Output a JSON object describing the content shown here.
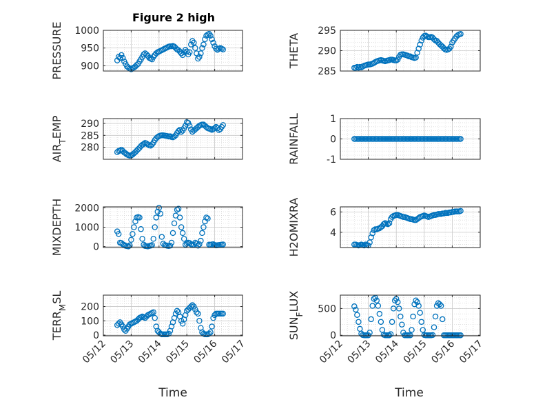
{
  "figure": {
    "title": "Figure 2 high",
    "xlabel": "Time",
    "marker_color": "#0072BD",
    "x_tick_labels": [
      "05/12",
      "05/13",
      "05/14",
      "05/15",
      "05/16",
      "05/17"
    ]
  },
  "chart_data": [
    {
      "type": "scatter",
      "panel": "pressure",
      "ylabel": "PRESSURE",
      "ylabel_sub": "",
      "xlim": [
        12,
        17
      ],
      "ylim": [
        885,
        1000
      ],
      "yticks": [
        900,
        950,
        1000
      ],
      "x": [
        12.5,
        12.55,
        12.6,
        12.65,
        12.7,
        12.75,
        12.8,
        12.85,
        12.9,
        12.95,
        13.0,
        13.05,
        13.1,
        13.15,
        13.2,
        13.25,
        13.3,
        13.35,
        13.4,
        13.45,
        13.5,
        13.55,
        13.6,
        13.65,
        13.7,
        13.75,
        13.8,
        13.85,
        13.9,
        13.95,
        14.0,
        14.05,
        14.1,
        14.15,
        14.2,
        14.25,
        14.3,
        14.35,
        14.4,
        14.45,
        14.5,
        14.55,
        14.6,
        14.65,
        14.7,
        14.75,
        14.8,
        14.85,
        14.9,
        14.95,
        15.0,
        15.05,
        15.1,
        15.15,
        15.2,
        15.25,
        15.3,
        15.35,
        15.4,
        15.45,
        15.5,
        15.55,
        15.6,
        15.65,
        15.7,
        15.75,
        15.8,
        15.85,
        15.9,
        15.95,
        16.0,
        16.05,
        16.1,
        16.15,
        16.2,
        16.25,
        16.3
      ],
      "y": [
        915,
        925,
        922,
        930,
        922,
        912,
        905,
        898,
        895,
        892,
        890,
        893,
        895,
        898,
        902,
        905,
        912,
        918,
        925,
        932,
        935,
        932,
        928,
        922,
        920,
        918,
        925,
        930,
        935,
        938,
        940,
        942,
        944,
        946,
        948,
        950,
        952,
        954,
        955,
        955,
        956,
        954,
        950,
        946,
        944,
        940,
        935,
        930,
        938,
        945,
        940,
        932,
        938,
        960,
        970,
        965,
        950,
        935,
        920,
        925,
        935,
        950,
        960,
        975,
        985,
        988,
        990,
        985,
        975,
        965,
        955,
        948,
        945,
        948,
        950,
        948,
        946
      ]
    },
    {
      "type": "scatter",
      "panel": "theta",
      "ylabel": "THETA",
      "ylabel_sub": "",
      "xlim": [
        12,
        17
      ],
      "ylim": [
        285,
        295
      ],
      "yticks": [
        285,
        290,
        295
      ],
      "x": [
        12.5,
        12.55,
        12.6,
        12.65,
        12.7,
        12.75,
        12.8,
        12.85,
        12.9,
        12.95,
        13.0,
        13.05,
        13.1,
        13.15,
        13.2,
        13.25,
        13.3,
        13.35,
        13.4,
        13.45,
        13.5,
        13.55,
        13.6,
        13.65,
        13.7,
        13.75,
        13.8,
        13.85,
        13.9,
        13.95,
        14.0,
        14.05,
        14.1,
        14.15,
        14.2,
        14.25,
        14.3,
        14.35,
        14.4,
        14.45,
        14.5,
        14.55,
        14.6,
        14.65,
        14.7,
        14.75,
        14.8,
        14.85,
        14.9,
        14.95,
        15.0,
        15.05,
        15.1,
        15.15,
        15.2,
        15.25,
        15.3,
        15.35,
        15.4,
        15.45,
        15.5,
        15.55,
        15.6,
        15.65,
        15.7,
        15.75,
        15.8,
        15.85,
        15.9,
        15.95,
        16.0,
        16.05,
        16.1,
        16.15,
        16.2,
        16.25,
        16.3
      ],
      "y": [
        285.8,
        285.8,
        286.0,
        285.8,
        286.0,
        285.9,
        286.1,
        286.3,
        286.4,
        286.5,
        286.6,
        286.6,
        286.7,
        286.8,
        287.0,
        287.2,
        287.4,
        287.5,
        287.6,
        287.7,
        287.6,
        287.5,
        287.4,
        287.5,
        287.6,
        287.7,
        287.8,
        287.8,
        287.7,
        287.6,
        287.6,
        287.8,
        288.5,
        289.0,
        289.1,
        289.1,
        289.0,
        288.9,
        288.8,
        288.6,
        288.6,
        288.4,
        288.3,
        288.2,
        288.3,
        289.5,
        290.5,
        291.5,
        292.5,
        293.2,
        293.6,
        293.7,
        293.5,
        293.3,
        293.3,
        293.4,
        293.2,
        292.8,
        292.5,
        292.4,
        292.0,
        291.6,
        291.3,
        291.0,
        290.6,
        290.3,
        290.2,
        290.3,
        290.5,
        291.0,
        292.0,
        292.5,
        293.0,
        293.5,
        293.8,
        294.0,
        294.1
      ]
    },
    {
      "type": "scatter",
      "panel": "air_temp",
      "ylabel": "AIR",
      "ylabel_sub": "T",
      "ylabel_rest": "EMP",
      "xlim": [
        12,
        17
      ],
      "ylim": [
        275,
        292
      ],
      "yticks": [
        280,
        285,
        290
      ],
      "x": [
        12.5,
        12.55,
        12.6,
        12.65,
        12.7,
        12.75,
        12.8,
        12.85,
        12.9,
        12.95,
        13.0,
        13.05,
        13.1,
        13.15,
        13.2,
        13.25,
        13.3,
        13.35,
        13.4,
        13.45,
        13.5,
        13.55,
        13.6,
        13.65,
        13.7,
        13.75,
        13.8,
        13.85,
        13.9,
        13.95,
        14.0,
        14.05,
        14.1,
        14.15,
        14.2,
        14.25,
        14.3,
        14.35,
        14.4,
        14.45,
        14.5,
        14.55,
        14.6,
        14.65,
        14.7,
        14.75,
        14.8,
        14.85,
        14.9,
        14.95,
        15.0,
        15.05,
        15.1,
        15.15,
        15.2,
        15.25,
        15.3,
        15.35,
        15.4,
        15.45,
        15.5,
        15.55,
        15.6,
        15.65,
        15.7,
        15.75,
        15.8,
        15.85,
        15.9,
        15.95,
        16.0,
        16.05,
        16.1,
        16.15,
        16.2,
        16.25,
        16.3
      ],
      "y": [
        278.0,
        278.5,
        278.6,
        279.0,
        278.5,
        277.8,
        277.5,
        277.0,
        276.7,
        276.5,
        276.6,
        277.0,
        277.5,
        278.0,
        278.6,
        279.2,
        279.8,
        280.5,
        281.0,
        281.4,
        281.8,
        281.6,
        281.2,
        280.8,
        280.7,
        281.2,
        282.0,
        283.0,
        283.8,
        284.3,
        284.7,
        284.9,
        285.0,
        285.0,
        284.9,
        284.8,
        284.7,
        284.5,
        284.6,
        284.3,
        284.2,
        284.5,
        285.0,
        286.0,
        286.8,
        287.3,
        286.5,
        287.0,
        288.0,
        289.0,
        290.5,
        290.2,
        289.0,
        287.5,
        286.5,
        287.0,
        287.5,
        288.0,
        288.5,
        289.0,
        289.3,
        289.5,
        289.5,
        289.0,
        288.5,
        288.0,
        287.8,
        287.6,
        287.3,
        287.6,
        288.0,
        288.5,
        288.0,
        287.2,
        287.6,
        288.5,
        289.3
      ]
    },
    {
      "type": "scatter",
      "panel": "rainfall",
      "ylabel": "RAINFALL",
      "ylabel_sub": "",
      "xlim": [
        12,
        17
      ],
      "ylim": [
        -1,
        1
      ],
      "yticks": [
        -1,
        0,
        1
      ],
      "x": [
        12.5,
        12.55,
        12.6,
        12.65,
        12.7,
        12.75,
        12.8,
        12.85,
        12.9,
        12.95,
        13.0,
        13.05,
        13.1,
        13.15,
        13.2,
        13.25,
        13.3,
        13.35,
        13.4,
        13.45,
        13.5,
        13.55,
        13.6,
        13.65,
        13.7,
        13.75,
        13.8,
        13.85,
        13.9,
        13.95,
        14.0,
        14.05,
        14.1,
        14.15,
        14.2,
        14.25,
        14.3,
        14.35,
        14.4,
        14.45,
        14.5,
        14.55,
        14.6,
        14.65,
        14.7,
        14.75,
        14.8,
        14.85,
        14.9,
        14.95,
        15.0,
        15.05,
        15.1,
        15.15,
        15.2,
        15.25,
        15.3,
        15.35,
        15.4,
        15.45,
        15.5,
        15.55,
        15.6,
        15.65,
        15.7,
        15.75,
        15.8,
        15.85,
        15.9,
        15.95,
        16.0,
        16.05,
        16.1,
        16.15,
        16.2,
        16.25,
        16.3
      ],
      "y": [
        0,
        0,
        0,
        0,
        0,
        0,
        0,
        0,
        0,
        0,
        0,
        0,
        0,
        0,
        0,
        0,
        0,
        0,
        0,
        0,
        0,
        0,
        0,
        0,
        0,
        0,
        0,
        0,
        0,
        0,
        0,
        0,
        0,
        0,
        0,
        0,
        0,
        0,
        0,
        0,
        0,
        0,
        0,
        0,
        0,
        0,
        0,
        0,
        0,
        0,
        0,
        0,
        0,
        0,
        0,
        0,
        0,
        0,
        0,
        0,
        0,
        0,
        0,
        0,
        0,
        0,
        0,
        0,
        0,
        0,
        0,
        0,
        0,
        0,
        0,
        0,
        0
      ]
    },
    {
      "type": "scatter",
      "panel": "mixdepth",
      "ylabel": "MIXDEPTH",
      "ylabel_sub": "",
      "xlim": [
        12,
        17
      ],
      "ylim": [
        -50,
        2050
      ],
      "yticks": [
        0,
        1000,
        2000
      ],
      "x": [
        12.5,
        12.55,
        12.6,
        12.65,
        12.7,
        12.75,
        12.8,
        12.85,
        12.9,
        12.95,
        13.0,
        13.05,
        13.1,
        13.15,
        13.2,
        13.25,
        13.3,
        13.35,
        13.4,
        13.45,
        13.5,
        13.55,
        13.6,
        13.65,
        13.7,
        13.75,
        13.8,
        13.85,
        13.9,
        13.95,
        14.0,
        14.05,
        14.1,
        14.15,
        14.2,
        14.25,
        14.3,
        14.35,
        14.4,
        14.45,
        14.5,
        14.55,
        14.6,
        14.65,
        14.7,
        14.75,
        14.8,
        14.85,
        14.9,
        14.95,
        15.0,
        15.05,
        15.1,
        15.15,
        15.2,
        15.25,
        15.3,
        15.35,
        15.4,
        15.45,
        15.5,
        15.55,
        15.6,
        15.65,
        15.7,
        15.75,
        15.8,
        15.85,
        15.9,
        15.95,
        16.0,
        16.05,
        16.1,
        16.15,
        16.2,
        16.25,
        16.3
      ],
      "y": [
        780,
        650,
        200,
        180,
        120,
        80,
        40,
        20,
        10,
        60,
        350,
        650,
        1000,
        1300,
        1500,
        1520,
        1500,
        900,
        400,
        100,
        30,
        20,
        10,
        30,
        50,
        80,
        400,
        1000,
        1500,
        1800,
        2000,
        1700,
        500,
        150,
        80,
        60,
        40,
        30,
        50,
        200,
        700,
        1200,
        1600,
        1900,
        1950,
        1500,
        1000,
        700,
        400,
        100,
        150,
        200,
        180,
        120,
        80,
        100,
        200,
        150,
        50,
        120,
        300,
        700,
        1000,
        1300,
        1500,
        1450,
        100,
        90,
        110,
        120,
        80,
        60,
        70,
        80,
        90,
        100,
        110
      ]
    },
    {
      "type": "scatter",
      "panel": "h2omixra",
      "ylabel": "H2OMIXRA",
      "ylabel_sub": "",
      "xlim": [
        12,
        17
      ],
      "ylim": [
        2.5,
        6.5
      ],
      "yticks": [
        4,
        6
      ],
      "x": [
        12.5,
        12.55,
        12.6,
        12.65,
        12.7,
        12.75,
        12.8,
        12.85,
        12.9,
        12.95,
        13.0,
        13.05,
        13.1,
        13.15,
        13.2,
        13.25,
        13.3,
        13.35,
        13.4,
        13.45,
        13.5,
        13.55,
        13.6,
        13.65,
        13.7,
        13.75,
        13.8,
        13.85,
        13.9,
        13.95,
        14.0,
        14.05,
        14.1,
        14.15,
        14.2,
        14.25,
        14.3,
        14.35,
        14.4,
        14.45,
        14.5,
        14.55,
        14.6,
        14.65,
        14.7,
        14.75,
        14.8,
        14.85,
        14.9,
        14.95,
        15.0,
        15.05,
        15.1,
        15.15,
        15.2,
        15.25,
        15.3,
        15.35,
        15.4,
        15.45,
        15.5,
        15.55,
        15.6,
        15.65,
        15.7,
        15.75,
        15.8,
        15.85,
        15.9,
        15.95,
        16.0,
        16.05,
        16.1,
        16.15,
        16.2,
        16.25,
        16.3
      ],
      "y": [
        2.8,
        2.8,
        2.75,
        2.7,
        2.75,
        2.8,
        2.75,
        2.7,
        2.8,
        2.75,
        2.7,
        3.0,
        3.5,
        3.9,
        4.2,
        4.3,
        4.3,
        4.35,
        4.4,
        4.5,
        4.6,
        4.8,
        4.9,
        4.85,
        4.8,
        4.9,
        5.3,
        5.5,
        5.6,
        5.65,
        5.7,
        5.7,
        5.65,
        5.6,
        5.55,
        5.5,
        5.5,
        5.45,
        5.4,
        5.35,
        5.3,
        5.3,
        5.25,
        5.2,
        5.2,
        5.3,
        5.4,
        5.5,
        5.55,
        5.6,
        5.65,
        5.6,
        5.55,
        5.5,
        5.55,
        5.6,
        5.65,
        5.7,
        5.7,
        5.75,
        5.8,
        5.8,
        5.8,
        5.85,
        5.85,
        5.9,
        5.9,
        5.9,
        5.95,
        5.95,
        6.0,
        6.0,
        6.05,
        6.05,
        6.05,
        6.05,
        6.1
      ]
    },
    {
      "type": "scatter",
      "panel": "terr_msl",
      "ylabel": "TERR",
      "ylabel_sub": "M",
      "ylabel_rest": "SL",
      "xlim": [
        12,
        17
      ],
      "ylim": [
        -5,
        280
      ],
      "yticks": [
        0,
        100,
        200
      ],
      "x": [
        12.5,
        12.55,
        12.6,
        12.65,
        12.7,
        12.75,
        12.8,
        12.85,
        12.9,
        12.95,
        13.0,
        13.05,
        13.1,
        13.15,
        13.2,
        13.25,
        13.3,
        13.35,
        13.4,
        13.45,
        13.5,
        13.55,
        13.6,
        13.65,
        13.7,
        13.75,
        13.8,
        13.85,
        13.9,
        13.95,
        14.0,
        14.05,
        14.1,
        14.15,
        14.2,
        14.25,
        14.3,
        14.35,
        14.4,
        14.45,
        14.5,
        14.55,
        14.6,
        14.65,
        14.7,
        14.75,
        14.8,
        14.85,
        14.9,
        14.95,
        15.0,
        15.05,
        15.1,
        15.15,
        15.2,
        15.25,
        15.3,
        15.35,
        15.4,
        15.45,
        15.5,
        15.55,
        15.6,
        15.65,
        15.7,
        15.75,
        15.8,
        15.85,
        15.9,
        15.95,
        16.0,
        16.05,
        16.1,
        16.15,
        16.2,
        16.25,
        16.3
      ],
      "y": [
        70,
        80,
        90,
        75,
        60,
        40,
        30,
        45,
        60,
        75,
        80,
        85,
        90,
        95,
        100,
        110,
        120,
        125,
        130,
        125,
        120,
        130,
        140,
        145,
        150,
        155,
        160,
        120,
        60,
        30,
        20,
        10,
        5,
        5,
        5,
        5,
        5,
        10,
        30,
        60,
        90,
        120,
        150,
        170,
        160,
        130,
        100,
        80,
        110,
        140,
        170,
        180,
        190,
        200,
        210,
        200,
        180,
        160,
        150,
        100,
        50,
        20,
        10,
        5,
        5,
        5,
        10,
        20,
        60,
        120,
        140,
        150,
        150,
        150,
        150,
        150,
        150
      ]
    },
    {
      "type": "scatter",
      "panel": "sun_flux",
      "ylabel": "SUN",
      "ylabel_sub": "F",
      "ylabel_rest": "LUX",
      "xlim": [
        12,
        17
      ],
      "ylim": [
        -10,
        750
      ],
      "yticks": [
        0,
        500
      ],
      "x": [
        12.5,
        12.55,
        12.6,
        12.65,
        12.7,
        12.75,
        12.8,
        12.85,
        12.9,
        12.95,
        13.0,
        13.05,
        13.1,
        13.15,
        13.2,
        13.25,
        13.3,
        13.35,
        13.4,
        13.45,
        13.5,
        13.55,
        13.6,
        13.65,
        13.7,
        13.75,
        13.8,
        13.85,
        13.9,
        13.95,
        14.0,
        14.05,
        14.1,
        14.15,
        14.2,
        14.25,
        14.3,
        14.35,
        14.4,
        14.45,
        14.5,
        14.55,
        14.6,
        14.65,
        14.7,
        14.75,
        14.8,
        14.85,
        14.9,
        14.95,
        15.0,
        15.05,
        15.1,
        15.15,
        15.2,
        15.25,
        15.3,
        15.35,
        15.4,
        15.45,
        15.5,
        15.55,
        15.6,
        15.65,
        15.7,
        15.75,
        15.8,
        15.85,
        15.9,
        15.95,
        16.0,
        16.05,
        16.1,
        16.15,
        16.2,
        16.25,
        16.3
      ],
      "y": [
        540,
        480,
        380,
        250,
        120,
        30,
        5,
        0,
        0,
        0,
        0,
        50,
        300,
        550,
        680,
        700,
        650,
        550,
        400,
        250,
        100,
        10,
        0,
        0,
        0,
        0,
        20,
        250,
        500,
        650,
        680,
        620,
        500,
        350,
        200,
        50,
        0,
        0,
        0,
        0,
        0,
        100,
        350,
        580,
        650,
        620,
        550,
        420,
        250,
        100,
        5,
        0,
        0,
        0,
        0,
        0,
        5,
        150,
        350,
        550,
        600,
        580,
        550,
        300,
        0,
        0,
        0,
        0,
        0,
        0,
        0,
        0,
        0,
        0,
        0,
        0,
        0
      ]
    }
  ]
}
